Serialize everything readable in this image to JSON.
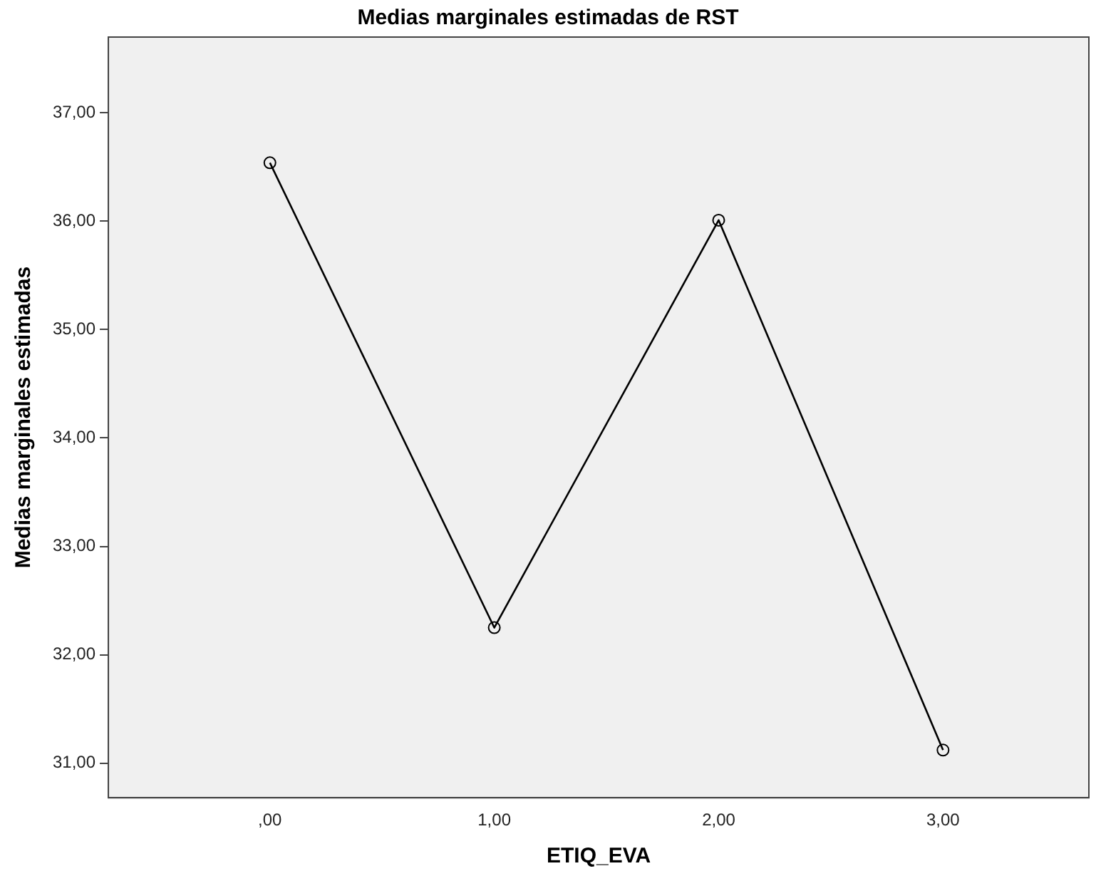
{
  "chart_data": {
    "type": "line",
    "title": "Medias marginales estimadas de RST",
    "xlabel": "ETIQ_EVA",
    "ylabel": "Medias marginales estimadas",
    "x": [
      0,
      1,
      2,
      3
    ],
    "series": [
      {
        "color": "#000000",
        "values": [
          36.54,
          32.25,
          36.01,
          31.12
        ]
      }
    ],
    "xlim": [
      -0.72,
      3.65
    ],
    "xticks": [
      {
        "value": 0,
        "label": ",00"
      },
      {
        "value": 1,
        "label": "1,00"
      },
      {
        "value": 2,
        "label": "2,00"
      },
      {
        "value": 3,
        "label": "3,00"
      }
    ],
    "ylim": [
      30.68,
      37.7
    ],
    "yticks": [
      {
        "value": 31,
        "label": "31,00"
      },
      {
        "value": 32,
        "label": "32,00"
      },
      {
        "value": 33,
        "label": "33,00"
      },
      {
        "value": 34,
        "label": "34,00"
      },
      {
        "value": 35,
        "label": "35,00"
      },
      {
        "value": 36,
        "label": "36,00"
      },
      {
        "value": 37,
        "label": "37,00"
      }
    ],
    "grid": false,
    "legend": false,
    "marker": "circle",
    "line_style": "solid"
  }
}
